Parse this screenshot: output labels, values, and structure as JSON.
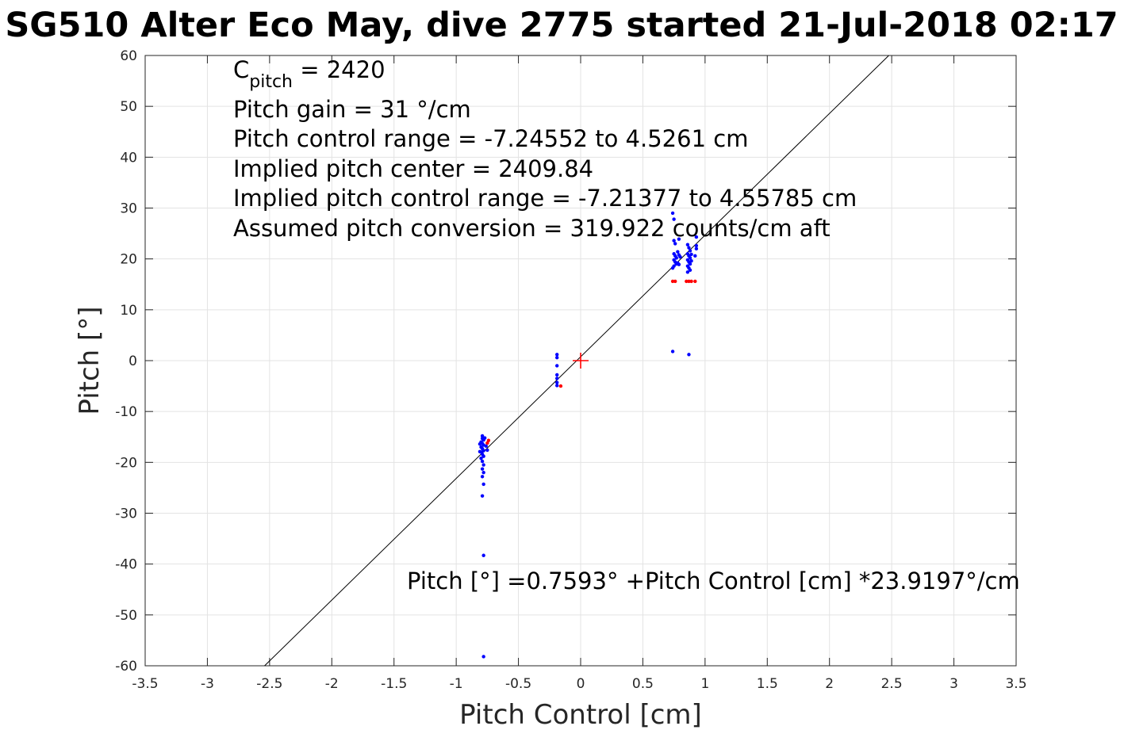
{
  "chart_data": {
    "type": "scatter",
    "title": "SG510 Alter Eco May, dive 2775 started 21-Jul-2018 02:17",
    "xlabel": "Pitch Control [cm]",
    "ylabel": "Pitch [°]",
    "xlim": [
      -3.5,
      3.5
    ],
    "ylim": [
      -60,
      60
    ],
    "grid": true,
    "x_ticks": [
      "-3.5",
      "-3",
      "-2.5",
      "-2",
      "-1.5",
      "-1",
      "-0.5",
      "0",
      "0.5",
      "1",
      "1.5",
      "2",
      "2.5",
      "3",
      "3.5"
    ],
    "y_ticks": [
      "60",
      "50",
      "40",
      "30",
      "20",
      "10",
      "0",
      "-10",
      "-20",
      "-30",
      "-40",
      "-50",
      "-60"
    ],
    "annotations": {
      "c_pitch_symbol": "C",
      "c_pitch_subscript": "pitch",
      "c_pitch_value": " = 2420",
      "lines": [
        "Pitch gain = 31 °/cm",
        "Pitch control range = -7.24552 to 4.5261 cm",
        "Implied pitch center = 2409.84",
        "Implied pitch control range = -7.21377 to 4.55785 cm",
        "Assumed pitch conversion = 319.922 counts/cm aft"
      ],
      "fit_equation": "Pitch [°] =0.7593° +Pitch Control [cm] *23.9197°/cm"
    },
    "fit_line": {
      "intercept": 0.7593,
      "slope": 23.9197,
      "color": "#000000"
    },
    "center_marker": {
      "x": 0,
      "y": 0,
      "color": "#ff0000",
      "symbol": "+"
    },
    "series": [
      {
        "color": "#0000ff",
        "points": [
          [
            -0.79,
            -14.8
          ],
          [
            -0.79,
            -15.3
          ],
          [
            -0.78,
            -15.6
          ],
          [
            -0.8,
            -16.0
          ],
          [
            -0.79,
            -16.3
          ],
          [
            -0.78,
            -16.6
          ],
          [
            -0.8,
            -17.0
          ],
          [
            -0.79,
            -17.3
          ],
          [
            -0.78,
            -17.7
          ],
          [
            -0.8,
            -18.0
          ],
          [
            -0.79,
            -18.4
          ],
          [
            -0.78,
            -18.8
          ],
          [
            -0.8,
            -19.2
          ],
          [
            -0.79,
            -19.8
          ],
          [
            -0.78,
            -20.5
          ],
          [
            -0.79,
            -21.3
          ],
          [
            -0.78,
            -22.0
          ],
          [
            -0.79,
            -22.8
          ],
          [
            -0.78,
            -24.3
          ],
          [
            -0.79,
            -26.6
          ],
          [
            -0.76,
            -16.8
          ],
          [
            -0.75,
            -17.6
          ],
          [
            -0.77,
            -15.2
          ],
          [
            -0.81,
            -16.4
          ],
          [
            -0.81,
            -17.9
          ],
          [
            -0.78,
            -38.3
          ],
          [
            -0.78,
            -58.2
          ],
          [
            -0.19,
            1.2
          ],
          [
            -0.19,
            0.6
          ],
          [
            -0.19,
            -1.0
          ],
          [
            -0.19,
            -2.8
          ],
          [
            -0.19,
            -3.5
          ],
          [
            -0.19,
            -4.3
          ],
          [
            -0.19,
            -4.9
          ],
          [
            0.74,
            29.0
          ],
          [
            0.75,
            27.8
          ],
          [
            0.75,
            23.6
          ],
          [
            0.76,
            23.0
          ],
          [
            0.79,
            23.9
          ],
          [
            0.75,
            21.0
          ],
          [
            0.76,
            20.6
          ],
          [
            0.77,
            20.2
          ],
          [
            0.75,
            19.8
          ],
          [
            0.76,
            19.4
          ],
          [
            0.77,
            19.0
          ],
          [
            0.75,
            18.6
          ],
          [
            0.78,
            21.4
          ],
          [
            0.79,
            20.8
          ],
          [
            0.78,
            19.2
          ],
          [
            0.79,
            18.9
          ],
          [
            0.74,
            18.2
          ],
          [
            0.8,
            20.4
          ],
          [
            0.86,
            22.8
          ],
          [
            0.87,
            22.2
          ],
          [
            0.88,
            21.6
          ],
          [
            0.86,
            21.0
          ],
          [
            0.87,
            20.6
          ],
          [
            0.88,
            20.2
          ],
          [
            0.86,
            19.8
          ],
          [
            0.87,
            19.4
          ],
          [
            0.88,
            19.0
          ],
          [
            0.86,
            18.6
          ],
          [
            0.87,
            18.2
          ],
          [
            0.88,
            17.8
          ],
          [
            0.86,
            17.4
          ],
          [
            0.89,
            20.9
          ],
          [
            0.89,
            19.6
          ],
          [
            0.93,
            24.3
          ],
          [
            0.93,
            22.6
          ],
          [
            0.93,
            22.0
          ],
          [
            0.92,
            20.6
          ],
          [
            0.74,
            1.8
          ],
          [
            0.87,
            1.2
          ]
        ]
      },
      {
        "color": "#ff0000",
        "points": [
          [
            -0.74,
            -15.7
          ],
          [
            -0.75,
            -16.2
          ],
          [
            -0.16,
            -5.0
          ],
          [
            0.74,
            15.6
          ],
          [
            0.76,
            15.6
          ],
          [
            0.85,
            15.6
          ],
          [
            0.87,
            15.6
          ],
          [
            0.89,
            15.6
          ],
          [
            0.92,
            15.6
          ]
        ]
      }
    ]
  }
}
